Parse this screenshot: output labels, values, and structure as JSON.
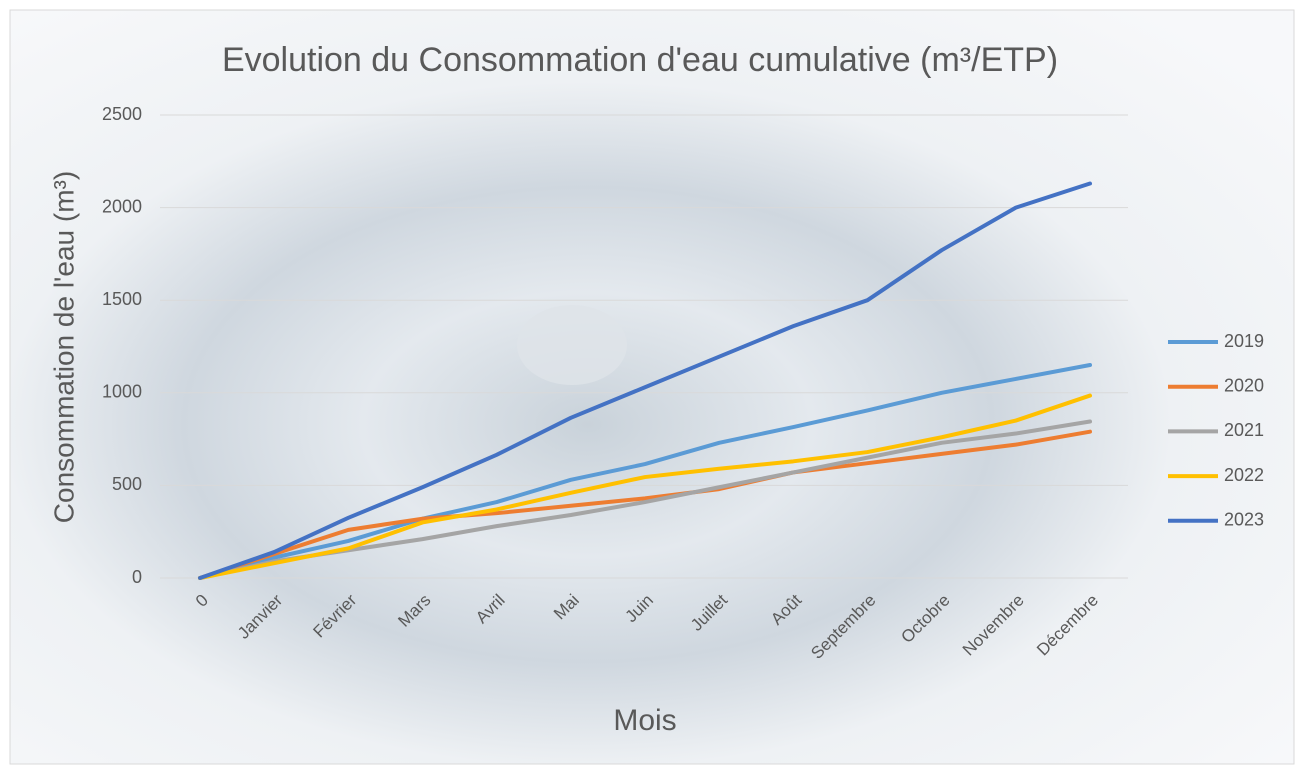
{
  "chart_data": {
    "type": "line",
    "title": "Evolution du Consommation d'eau cumulative (m³/ETP)",
    "x_label": "Mois",
    "y_label": "Consommation de l'eau (m³)",
    "categories": [
      "0",
      "Janvier",
      "Février",
      "Mars",
      "Avril",
      "Mai",
      "Juin",
      "Juillet",
      "Août",
      "Septembre",
      "Octobre",
      "Novembre",
      "Décembre"
    ],
    "series": [
      {
        "name": "2019",
        "color": "#5b9bd5",
        "values": [
          0,
          110,
          200,
          320,
          410,
          530,
          615,
          730,
          815,
          905,
          1000,
          1075,
          1150
        ]
      },
      {
        "name": "2020",
        "color": "#ed7d31",
        "values": [
          0,
          130,
          260,
          320,
          350,
          390,
          430,
          480,
          570,
          620,
          670,
          720,
          790
        ]
      },
      {
        "name": "2021",
        "color": "#a5a5a5",
        "values": [
          0,
          90,
          150,
          210,
          280,
          340,
          410,
          490,
          570,
          650,
          730,
          780,
          845
        ]
      },
      {
        "name": "2022",
        "color": "#ffc000",
        "values": [
          0,
          80,
          160,
          300,
          370,
          460,
          545,
          590,
          630,
          680,
          760,
          850,
          985
        ]
      },
      {
        "name": "2023",
        "color": "#4472c4",
        "values": [
          0,
          140,
          325,
          490,
          665,
          865,
          1030,
          1195,
          1360,
          1500,
          1770,
          2000,
          2130
        ]
      }
    ],
    "ylim": [
      0,
      2500
    ],
    "yticks": [
      0,
      500,
      1000,
      1500,
      2000,
      2500
    ],
    "grid": true,
    "legend": "right"
  }
}
